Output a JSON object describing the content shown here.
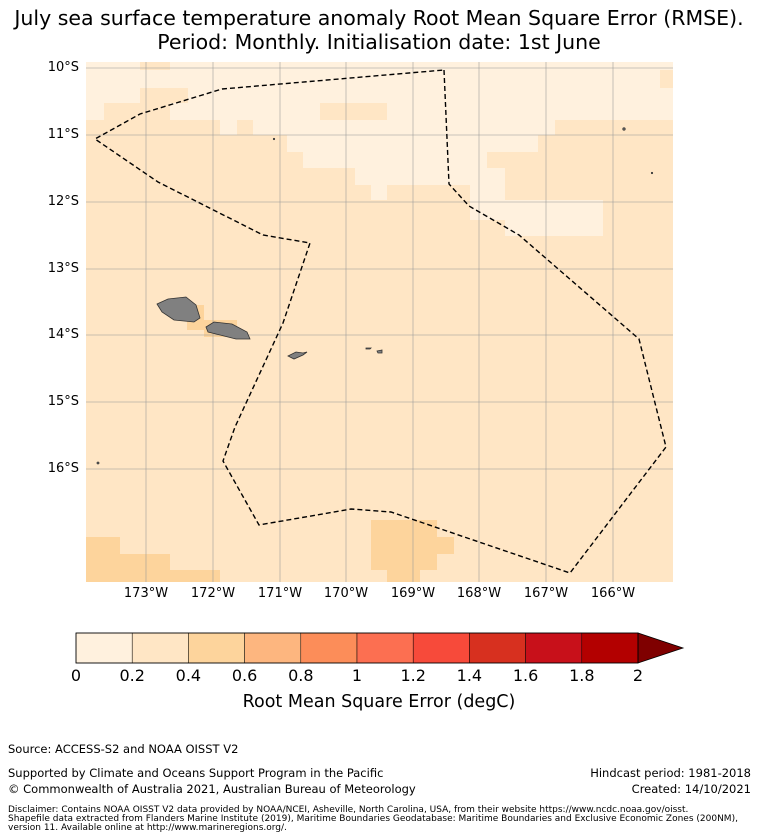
{
  "title": {
    "line1": "July sea surface temperature anomaly Root Mean Square Error (RMSE).",
    "line2": "Period: Monthly. Initialisation date: 1st June"
  },
  "map": {
    "lat_labels": [
      "10°S",
      "11°S",
      "12°S",
      "13°S",
      "14°S",
      "15°S",
      "16°S"
    ],
    "lon_labels": [
      "173°W",
      "172°W",
      "171°W",
      "170°W",
      "169°W",
      "168°W",
      "167°W",
      "166°W"
    ],
    "colors": {
      "band_0_0_2": "#fff1de",
      "band_0_2_0_4": "#ffe6c5",
      "band_0_4_0_6": "#fdd49c",
      "land": "#808080",
      "boundary": "#000000"
    }
  },
  "colorbar": {
    "ticks": [
      "0",
      "0.2",
      "0.4",
      "0.6",
      "0.8",
      "1",
      "1.2",
      "1.4",
      "1.6",
      "1.8",
      "2"
    ],
    "label": "Root Mean Square Error (degC)",
    "colors": [
      "#fff1de",
      "#ffe6c5",
      "#fdd49c",
      "#fdb67f",
      "#fc8d59",
      "#fc6f51",
      "#f74a3a",
      "#d7301f",
      "#c8101a",
      "#b30000",
      "#7f0000"
    ]
  },
  "footer": {
    "source": "Source: ACCESS-S2 and NOAA OISST V2",
    "supported": "Supported by Climate and Oceans Support Program in the Pacific",
    "copyright": "© Commonwealth of Australia 2021, Australian Bureau of Meteorology",
    "hindcast": "Hindcast period: 1981-2018",
    "created": "Created: 14/10/2021",
    "disclaimer1": "Disclaimer: Contains NOAA OISST V2 data provided by NOAA/NCEI, Asheville, North Carolina, USA, from their website https://www.ncdc.noaa.gov/oisst.",
    "disclaimer2": "Shapefile data extracted from Flanders Marine Institute (2019), Maritime Boundaries Geodatabase: Maritime Boundaries and Exclusive Economic Zones (200NM),",
    "disclaimer3": "version 11. Available online at http://www.marineregions.org/."
  }
}
